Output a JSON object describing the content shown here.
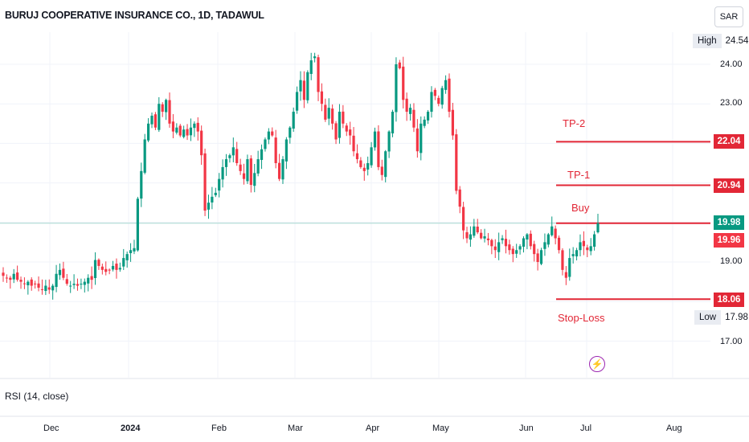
{
  "header": {
    "title": "BURUJ COOPERATIVE INSURANCE CO., 1D, TADAWUL",
    "currency_button": "SAR"
  },
  "stats": {
    "high_label": "High",
    "high_value": "24.54",
    "low_label": "Low",
    "low_value": "17.98"
  },
  "price_tags": {
    "tp2": "22.04",
    "tp1": "20.94",
    "current": "19.98",
    "prev_close": "19.96",
    "stop_loss": "18.06"
  },
  "annotations": {
    "tp2": "TP-2",
    "tp1": "TP-1",
    "buy": "Buy",
    "stop_loss": "Stop-Loss"
  },
  "indicator": {
    "label": "RSI (14, close)",
    "icon": "lightning-icon"
  },
  "colors": {
    "up": "#089981",
    "down": "#f23645",
    "level_line": "#e22736",
    "current_line": "#a7d8cf",
    "bolt": "#9c27b0"
  },
  "chart_data": {
    "type": "candlestick",
    "title": "BURUJ COOPERATIVE INSURANCE CO., 1D, TADAWUL",
    "ylim": [
      16.5,
      25.0
    ],
    "y_ticks": [
      "24.00",
      "23.00",
      "19.00",
      "17.00"
    ],
    "x_ticks": [
      "Dec",
      "2024",
      "Feb",
      "Mar",
      "Apr",
      "May",
      "Jun",
      "Jul",
      "Aug"
    ],
    "grid": true,
    "levels": [
      {
        "name": "TP-2",
        "value": 22.04
      },
      {
        "name": "TP-1",
        "value": 20.94
      },
      {
        "name": "Buy",
        "value": 19.98
      },
      {
        "name": "Stop-Loss",
        "value": 18.06
      }
    ],
    "current_price": 19.98,
    "high": 24.54,
    "low": 17.98,
    "closes": [
      18.65,
      18.6,
      18.55,
      18.7,
      18.55,
      18.5,
      18.45,
      18.5,
      18.4,
      18.45,
      18.35,
      18.3,
      18.4,
      18.3,
      18.4,
      18.7,
      18.8,
      18.6,
      18.45,
      18.4,
      18.45,
      18.4,
      18.45,
      18.5,
      18.6,
      18.55,
      19.05,
      18.9,
      18.8,
      18.75,
      18.8,
      18.9,
      18.8,
      18.85,
      19.1,
      19.2,
      19.3,
      19.35,
      20.6,
      21.3,
      22.1,
      22.5,
      22.7,
      22.4,
      23.0,
      22.8,
      23.1,
      22.5,
      22.3,
      22.4,
      22.2,
      22.35,
      22.2,
      22.4,
      22.5,
      22.3,
      21.7,
      20.3,
      20.5,
      20.65,
      20.75,
      21.1,
      21.4,
      21.6,
      21.7,
      21.9,
      21.5,
      21.3,
      21.1,
      21.6,
      20.95,
      21.25,
      21.6,
      21.85,
      22.1,
      22.3,
      22.2,
      21.5,
      21.1,
      21.6,
      22.1,
      22.4,
      22.8,
      23.3,
      23.6,
      23.1,
      23.8,
      24.1,
      24.2,
      23.3,
      23.0,
      22.6,
      22.9,
      22.5,
      22.1,
      22.8,
      22.5,
      22.3,
      22.2,
      21.8,
      21.6,
      21.4,
      21.3,
      21.5,
      21.9,
      22.3,
      21.4,
      21.2,
      21.8,
      22.3,
      22.8,
      24.0,
      23.9,
      23.1,
      22.8,
      22.9,
      22.4,
      21.8,
      22.5,
      22.6,
      22.8,
      23.3,
      23.2,
      23.0,
      23.4,
      23.6,
      22.8,
      22.2,
      20.8,
      20.4,
      19.8,
      19.6,
      19.7,
      19.9,
      19.75,
      19.6,
      19.65,
      19.55,
      19.4,
      19.3,
      19.5,
      19.6,
      19.4,
      19.3,
      19.2,
      19.3,
      19.4,
      19.6,
      19.7,
      19.4,
      19.2,
      19.0,
      19.3,
      19.5,
      19.7,
      19.9,
      19.6,
      19.3,
      18.8,
      18.6,
      19.1,
      19.2,
      19.3,
      19.5,
      19.4,
      19.3,
      19.4,
      19.7,
      19.98
    ]
  }
}
